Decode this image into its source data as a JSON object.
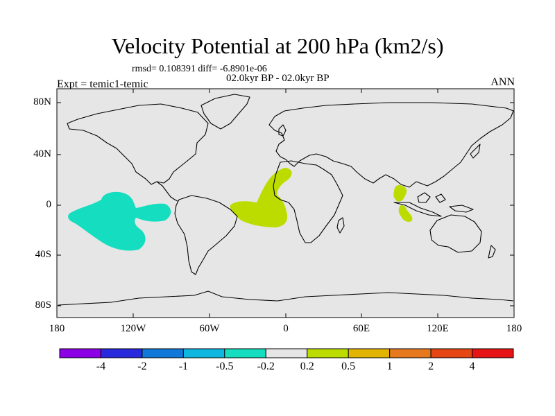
{
  "title": "Velocity Potential at 200 hPa (km2/s)",
  "stats": "rmsd= 0.108391 diff= -6.8901e-06",
  "period": "02.0kyr BP - 02.0kyr BP",
  "experiment": "Expt = temic1-temic",
  "season": "ANN",
  "map": {
    "background_color": "#e6e6e6",
    "lon_range": [
      -180,
      180
    ],
    "lat_range": [
      -90,
      90
    ],
    "lat_labels": [
      "80N",
      "40N",
      "0",
      "40S",
      "80S"
    ],
    "lon_labels": [
      "180",
      "120W",
      "60W",
      "0",
      "60E",
      "120E",
      "180"
    ],
    "anomalies": [
      {
        "region": "central-east-pacific",
        "sign": "negative",
        "bin": "-0.5 to -0.2",
        "color": "#15dec0"
      },
      {
        "region": "tropical-atlantic-west-africa",
        "sign": "positive",
        "bin": "0.2 to 0.5",
        "color": "#bcdc00"
      },
      {
        "region": "maritime-continent",
        "sign": "positive",
        "bin": "0.2 to 0.5",
        "color": "#bcdc00"
      }
    ]
  },
  "colorbar": {
    "colors": [
      "#8c00e6",
      "#2828dc",
      "#0f78d8",
      "#0fb6e0",
      "#15dec0",
      "#e6e6e6",
      "#bcdc00",
      "#e0b400",
      "#e6781e",
      "#e64614",
      "#e61414"
    ],
    "labels": [
      "-4",
      "-2",
      "-1",
      "-0.5",
      "-0.2",
      "0.2",
      "0.5",
      "1",
      "2",
      "4"
    ]
  }
}
